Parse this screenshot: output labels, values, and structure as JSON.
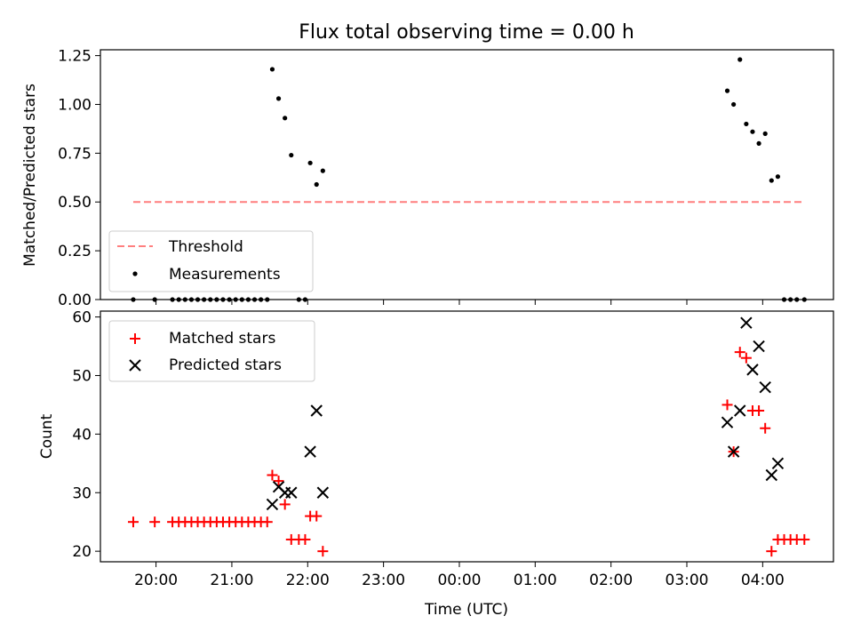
{
  "title": "Flux total observing time = 0.00 h",
  "chart_data": [
    {
      "type": "scatter",
      "ylabel": "Matched/Predicted stars",
      "xlim": [
        "19:16",
        "04:56"
      ],
      "ylim": [
        0,
        1.28
      ],
      "xticks": [
        "20:00",
        "21:00",
        "22:00",
        "23:00",
        "00:00",
        "01:00",
        "02:00",
        "03:00",
        "04:00"
      ],
      "yticks": [
        "0.00",
        "0.25",
        "0.50",
        "0.75",
        "1.00",
        "1.25"
      ],
      "legend_position": "lower-left",
      "threshold": {
        "name": "Threshold",
        "y": 0.5,
        "x_start": "19:42",
        "x_end": "04:33",
        "color": "#ff7f7f",
        "style": "dashed"
      },
      "measurements": {
        "name": "Measurements",
        "color": "#000000",
        "points": [
          [
            "19:42",
            0.0
          ],
          [
            "19:59",
            0.0
          ],
          [
            "20:13",
            0.0
          ],
          [
            "20:18",
            0.0
          ],
          [
            "20:23",
            0.0
          ],
          [
            "20:28",
            0.0
          ],
          [
            "20:33",
            0.0
          ],
          [
            "20:38",
            0.0
          ],
          [
            "20:43",
            0.0
          ],
          [
            "20:48",
            0.0
          ],
          [
            "20:53",
            0.0
          ],
          [
            "20:58",
            0.0
          ],
          [
            "21:03",
            0.0
          ],
          [
            "21:08",
            0.0
          ],
          [
            "21:13",
            0.0
          ],
          [
            "21:18",
            0.0
          ],
          [
            "21:23",
            0.0
          ],
          [
            "21:28",
            0.0
          ],
          [
            "21:32",
            1.18
          ],
          [
            "21:37",
            1.03
          ],
          [
            "21:42",
            0.93
          ],
          [
            "21:47",
            0.74
          ],
          [
            "21:53",
            0.0
          ],
          [
            "21:58",
            0.0
          ],
          [
            "22:02",
            0.7
          ],
          [
            "22:07",
            0.59
          ],
          [
            "22:12",
            0.66
          ],
          [
            "03:32",
            1.07
          ],
          [
            "03:37",
            1.0
          ],
          [
            "03:42",
            1.23
          ],
          [
            "03:47",
            0.9
          ],
          [
            "03:52",
            0.86
          ],
          [
            "03:57",
            0.8
          ],
          [
            "04:02",
            0.85
          ],
          [
            "04:07",
            0.61
          ],
          [
            "04:12",
            0.63
          ],
          [
            "04:17",
            0.0
          ],
          [
            "04:22",
            0.0
          ],
          [
            "04:27",
            0.0
          ],
          [
            "04:33",
            0.0
          ]
        ]
      }
    },
    {
      "type": "scatter",
      "xlabel": "Time (UTC)",
      "ylabel": "Count",
      "xlim": [
        "19:16",
        "04:56"
      ],
      "ylim": [
        18.2,
        61
      ],
      "xticks": [
        "20:00",
        "21:00",
        "22:00",
        "23:00",
        "00:00",
        "01:00",
        "02:00",
        "03:00",
        "04:00"
      ],
      "yticks": [
        "20",
        "30",
        "40",
        "50",
        "60"
      ],
      "legend_position": "top-left",
      "series": [
        {
          "name": "Matched stars",
          "marker": "plus",
          "color": "#ff0000",
          "points": [
            [
              "19:42",
              25
            ],
            [
              "19:59",
              25
            ],
            [
              "20:13",
              25
            ],
            [
              "20:18",
              25
            ],
            [
              "20:23",
              25
            ],
            [
              "20:28",
              25
            ],
            [
              "20:33",
              25
            ],
            [
              "20:38",
              25
            ],
            [
              "20:43",
              25
            ],
            [
              "20:48",
              25
            ],
            [
              "20:53",
              25
            ],
            [
              "20:58",
              25
            ],
            [
              "21:03",
              25
            ],
            [
              "21:08",
              25
            ],
            [
              "21:13",
              25
            ],
            [
              "21:18",
              25
            ],
            [
              "21:23",
              25
            ],
            [
              "21:28",
              25
            ],
            [
              "21:32",
              33
            ],
            [
              "21:37",
              32
            ],
            [
              "21:42",
              28
            ],
            [
              "21:47",
              22
            ],
            [
              "21:53",
              22
            ],
            [
              "21:58",
              22
            ],
            [
              "22:02",
              26
            ],
            [
              "22:07",
              26
            ],
            [
              "22:12",
              20
            ],
            [
              "03:32",
              45
            ],
            [
              "03:37",
              37
            ],
            [
              "03:42",
              54
            ],
            [
              "03:47",
              53
            ],
            [
              "03:52",
              44
            ],
            [
              "03:57",
              44
            ],
            [
              "04:02",
              41
            ],
            [
              "04:07",
              20
            ],
            [
              "04:12",
              22
            ],
            [
              "04:17",
              22
            ],
            [
              "04:22",
              22
            ],
            [
              "04:27",
              22
            ],
            [
              "04:33",
              22
            ]
          ]
        },
        {
          "name": "Predicted stars",
          "marker": "x",
          "color": "#000000",
          "points": [
            [
              "21:32",
              28
            ],
            [
              "21:37",
              31
            ],
            [
              "21:42",
              30
            ],
            [
              "21:47",
              30
            ],
            [
              "22:02",
              37
            ],
            [
              "22:07",
              44
            ],
            [
              "22:12",
              30
            ],
            [
              "03:32",
              42
            ],
            [
              "03:37",
              37
            ],
            [
              "03:42",
              44
            ],
            [
              "03:47",
              59
            ],
            [
              "03:52",
              51
            ],
            [
              "03:57",
              55
            ],
            [
              "04:02",
              48
            ],
            [
              "04:07",
              33
            ],
            [
              "04:12",
              35
            ]
          ]
        }
      ]
    }
  ]
}
